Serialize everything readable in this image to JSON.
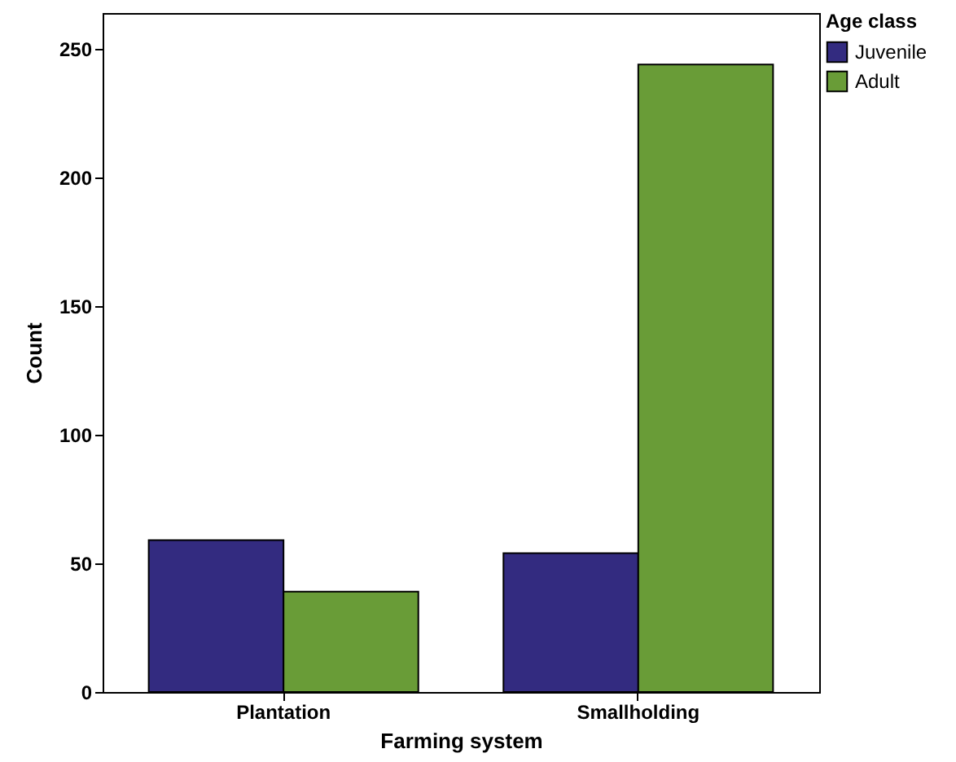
{
  "chart_data": {
    "type": "bar",
    "xlabel": "Farming system",
    "ylabel": "Count",
    "legend_title": "Age class",
    "categories": [
      "Plantation",
      "Smallholding"
    ],
    "series": [
      {
        "name": "Juvenile",
        "color": "#332b80",
        "values": [
          59,
          54
        ]
      },
      {
        "name": "Adult",
        "color": "#699c37",
        "values": [
          39,
          244
        ]
      }
    ],
    "ylim": [
      0,
      264
    ],
    "yticks": [
      0,
      50,
      100,
      150,
      200,
      250
    ],
    "grid": false,
    "legend": "top right"
  }
}
